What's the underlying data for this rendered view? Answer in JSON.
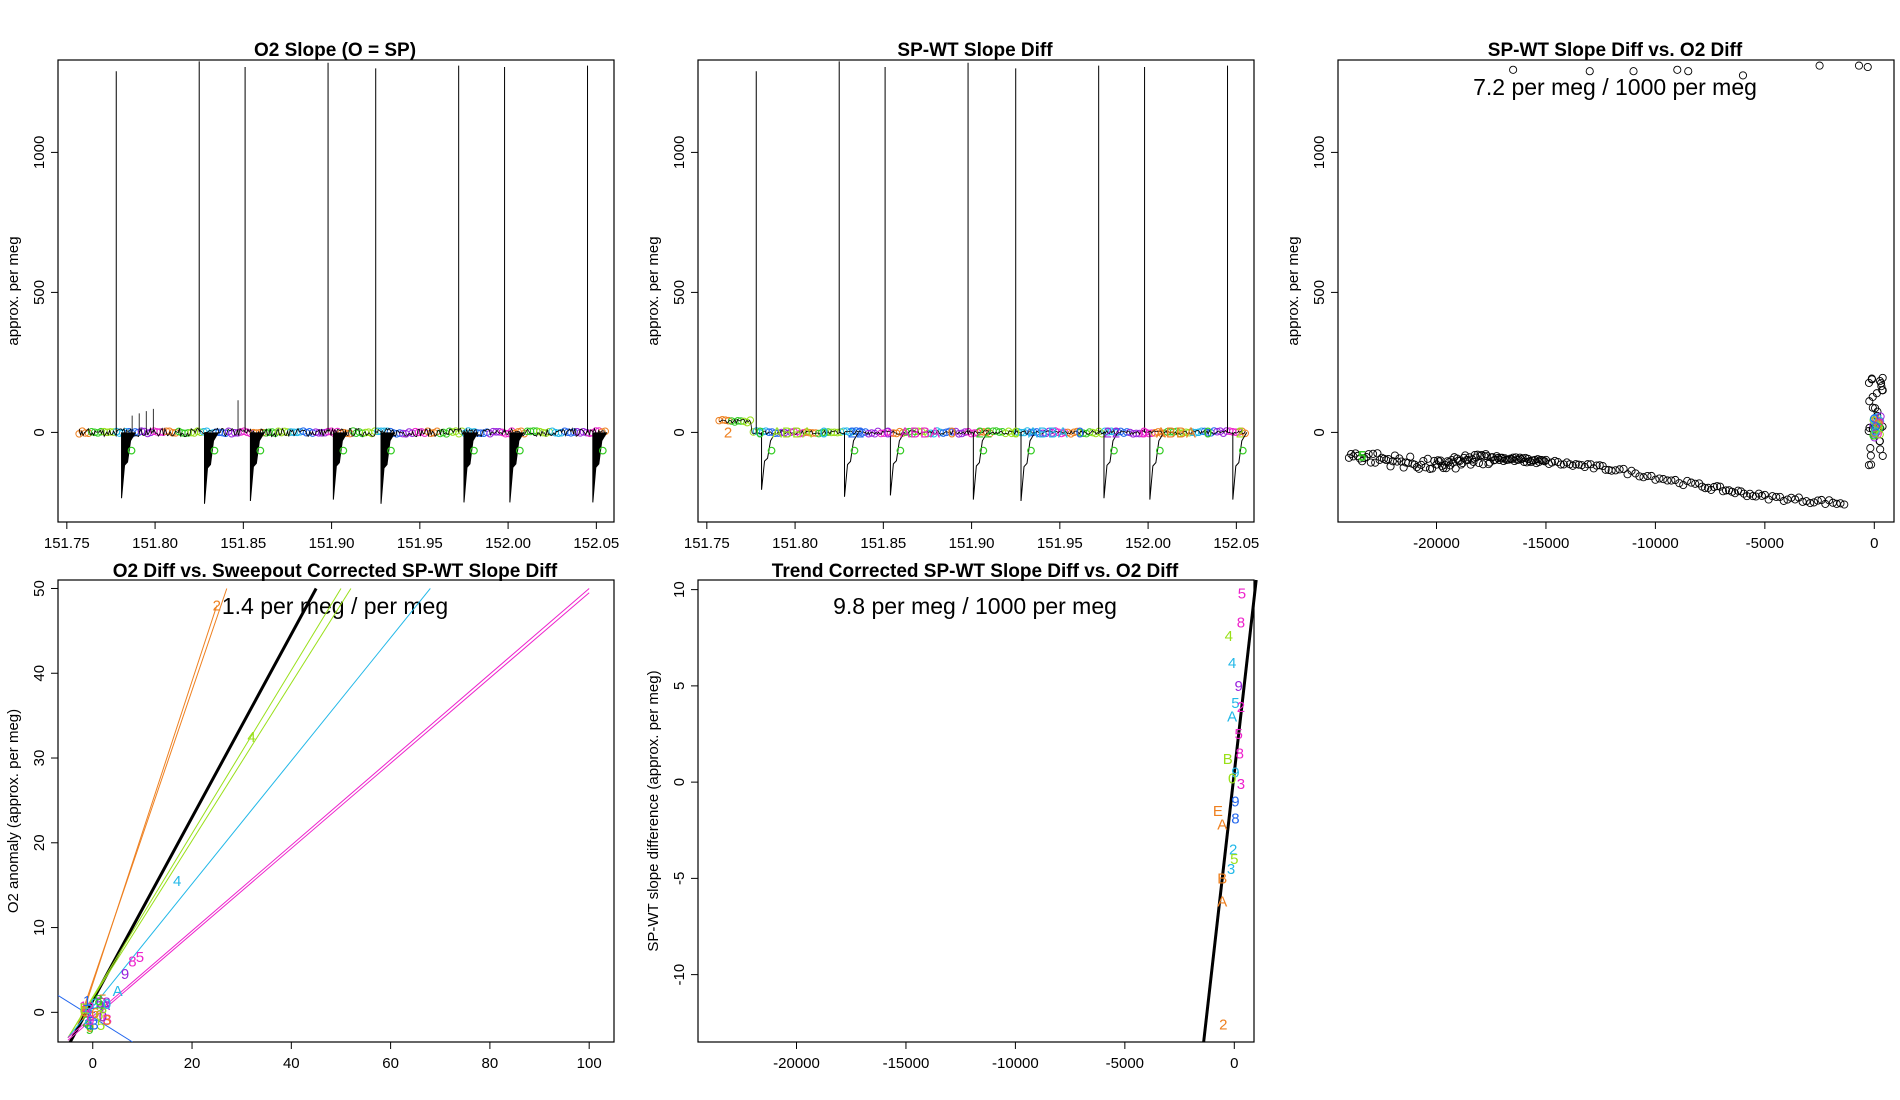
{
  "panels": {
    "p1": {
      "title": "O2 Slope (O = SP)",
      "ylabel": "approx. per meg",
      "xticks": [
        "151.75",
        "151.80",
        "151.85",
        "151.90",
        "151.95",
        "152.00",
        "152.05"
      ],
      "yticks": [
        "0",
        "500",
        "1000"
      ]
    },
    "p2": {
      "title": "SP-WT Slope Diff",
      "ylabel": "approx. per meg",
      "xticks": [
        "151.75",
        "151.80",
        "151.85",
        "151.90",
        "151.95",
        "152.00",
        "152.05"
      ],
      "yticks": [
        "0",
        "500",
        "1000"
      ],
      "labels": [
        "2",
        "0",
        "ABBA",
        "0",
        "22",
        "0",
        "ABBA",
        "0",
        "22",
        "0",
        "ABBA",
        "0",
        "22",
        "0",
        "ABBA",
        "0",
        "2"
      ]
    },
    "p3": {
      "title": "SP-WT Slope Diff vs. O2 Diff",
      "ylabel": "approx. per meg",
      "annotation": "7.2 per meg / 1000 per meg",
      "xticks": [
        "-20000",
        "-15000",
        "-10000",
        "-5000",
        "0"
      ],
      "yticks": [
        "0",
        "500",
        "1000"
      ],
      "marker_label": "5"
    },
    "p4": {
      "title": "O2 Diff vs. Sweepout Corrected SP-WT Slope Diff",
      "ylabel": "O2 anomaly (approx. per meg)",
      "annotation": "1.4 per meg / per meg",
      "xticks": [
        "0",
        "20",
        "40",
        "60",
        "80",
        "100"
      ],
      "yticks": [
        "0",
        "10",
        "20",
        "30",
        "40",
        "50"
      ],
      "point_labels": [
        "2",
        "4",
        "4",
        "5",
        "8",
        "9",
        "A",
        "5",
        "9"
      ]
    },
    "p5": {
      "title": "Trend Corrected SP-WT Slope Diff vs. O2 Diff",
      "ylabel": "SP-WT slope difference (approx. per meg)",
      "annotation": "9.8 per meg / 1000 per meg",
      "xticks": [
        "-20000",
        "-15000",
        "-10000",
        "-5000",
        "0"
      ],
      "yticks": [
        "-10",
        "-5",
        "0",
        "5",
        "10"
      ],
      "point_labels": [
        "5",
        "8",
        "4",
        "4",
        "9",
        "5",
        "2",
        "A",
        "5",
        "8",
        "B",
        "9",
        "0",
        "3",
        "9",
        "E",
        "A",
        "8",
        "2",
        "5",
        "B",
        "3",
        "A",
        "2"
      ]
    }
  },
  "colors": {
    "orange": "#ee8020",
    "green": "#33cc22",
    "lime": "#99e019",
    "cyan": "#22b8e8",
    "blue": "#2266ee",
    "purple": "#9922dd",
    "magenta": "#ee22cc",
    "black": "#000000"
  },
  "chart_data": [
    {
      "type": "line",
      "title": "O2 Slope (O = SP)",
      "xlabel": "",
      "ylabel": "approx. per meg",
      "xlim": [
        151.745,
        152.06
      ],
      "ylim": [
        -320,
        1330
      ],
      "spike_x": [
        151.778,
        151.825,
        151.851,
        151.898,
        151.925,
        151.972,
        151.998,
        152.045
      ],
      "spike_peak": [
        1290,
        1325,
        1305,
        1320,
        1300,
        1310,
        1305,
        1310
      ],
      "spike_trough": [
        -235,
        -255,
        -245,
        -240,
        -255,
        -250,
        -250,
        -250
      ],
      "baseline": 0
    },
    {
      "type": "line",
      "title": "SP-WT Slope Diff",
      "xlabel": "",
      "ylabel": "approx. per meg",
      "xlim": [
        151.745,
        152.06
      ],
      "ylim": [
        -320,
        1330
      ],
      "spike_x": [
        151.778,
        151.825,
        151.851,
        151.898,
        151.925,
        151.972,
        151.998,
        152.045
      ],
      "spike_peak": [
        1290,
        1325,
        1305,
        1320,
        1300,
        1310,
        1305,
        1310
      ],
      "spike_trough": [
        -205,
        -230,
        -225,
        -240,
        -245,
        -235,
        -240,
        -240
      ],
      "start_level": 40
    },
    {
      "type": "scatter",
      "title": "SP-WT Slope Diff vs. O2 Diff",
      "xlabel": "",
      "ylabel": "approx. per meg",
      "xlim": [
        -24500,
        900
      ],
      "ylim": [
        -320,
        1330
      ],
      "trend": [
        [
          -24000,
          -80
        ],
        [
          -20000,
          -120
        ],
        [
          -17500,
          -90
        ],
        [
          -15000,
          -105
        ],
        [
          -12000,
          -130
        ],
        [
          -8000,
          -190
        ],
        [
          -5000,
          -230
        ],
        [
          -1200,
          -255
        ],
        [
          0,
          10
        ]
      ],
      "outliers": [
        [
          -16500,
          1295
        ],
        [
          -13000,
          1290
        ],
        [
          -11000,
          1290
        ],
        [
          -9000,
          1295
        ],
        [
          -8500,
          1290
        ],
        [
          -6000,
          1275
        ],
        [
          -2500,
          1310
        ],
        [
          -700,
          1310
        ],
        [
          -300,
          1305
        ]
      ]
    },
    {
      "type": "scatter",
      "title": "O2 Diff vs. Sweepout Corrected SP-WT Slope Diff",
      "xlabel": "",
      "ylabel": "O2 anomaly (approx. per meg)",
      "xlim": [
        -7,
        105
      ],
      "ylim": [
        -3.5,
        51
      ],
      "fit_slope": 1.4,
      "lines": [
        {
          "color": "orange",
          "pts": [
            [
              -3,
              -2
            ],
            [
              25,
              48
            ]
          ]
        },
        {
          "color": "orange",
          "pts": [
            [
              -3,
              -1.5
            ],
            [
              27,
              50
            ]
          ]
        },
        {
          "color": "black",
          "pts": [
            [
              -5,
              -4
            ],
            [
              45,
              50
            ]
          ]
        },
        {
          "color": "lime",
          "pts": [
            [
              -5,
              -3
            ],
            [
              50,
              50
            ]
          ]
        },
        {
          "color": "lime",
          "pts": [
            [
              -5,
              -3
            ],
            [
              52,
              50
            ]
          ]
        },
        {
          "color": "cyan",
          "pts": [
            [
              -5,
              -3
            ],
            [
              68,
              50
            ]
          ]
        },
        {
          "color": "magenta",
          "pts": [
            [
              -5,
              -3
            ],
            [
              100,
              50
            ]
          ]
        },
        {
          "color": "magenta",
          "pts": [
            [
              -5,
              -3.3
            ],
            [
              100,
              49.5
            ]
          ]
        },
        {
          "color": "blue",
          "pts": [
            [
              -7,
              2
            ],
            [
              8,
              -3.5
            ]
          ]
        }
      ]
    },
    {
      "type": "scatter",
      "title": "Trend Corrected SP-WT Slope Diff vs. O2 Diff",
      "xlabel": "",
      "ylabel": "SP-WT slope difference (approx. per meg)",
      "xlim": [
        -24500,
        900
      ],
      "ylim": [
        -13.5,
        10.5
      ],
      "fit_slope_per_1000": 9.8,
      "fit_line": [
        [
          -1400,
          -13.5
        ],
        [
          1000,
          10.5
        ]
      ]
    }
  ]
}
